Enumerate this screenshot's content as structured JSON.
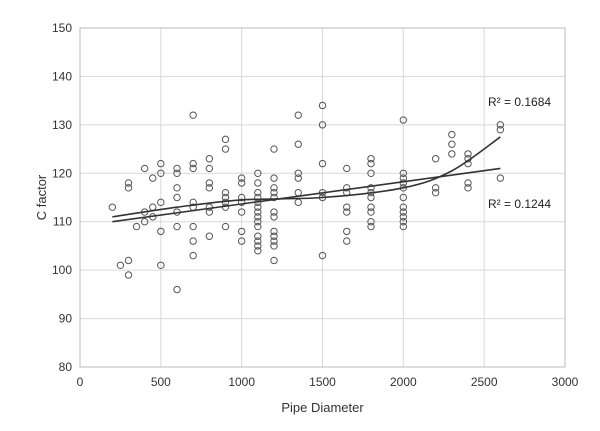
{
  "chart_data": {
    "type": "scatter",
    "xlabel": "Pipe Diameter",
    "ylabel": "C factor",
    "xlim": [
      0,
      3000
    ],
    "ylim": [
      80,
      150
    ],
    "x_ticks": [
      "0",
      "500",
      "1000",
      "1500",
      "2000",
      "2500",
      "3000"
    ],
    "y_ticks": [
      "80",
      "90",
      "100",
      "110",
      "120",
      "130",
      "140",
      "150"
    ],
    "grid": true,
    "point_color": "#555555",
    "line_color": "#333333",
    "points": [
      [
        200,
        113
      ],
      [
        250,
        101
      ],
      [
        300,
        102
      ],
      [
        300,
        99
      ],
      [
        300,
        117
      ],
      [
        300,
        118
      ],
      [
        350,
        109
      ],
      [
        400,
        112
      ],
      [
        400,
        110
      ],
      [
        400,
        121
      ],
      [
        450,
        111
      ],
      [
        450,
        113
      ],
      [
        450,
        119
      ],
      [
        500,
        122
      ],
      [
        500,
        120
      ],
      [
        500,
        114
      ],
      [
        500,
        108
      ],
      [
        500,
        101
      ],
      [
        600,
        121
      ],
      [
        600,
        120
      ],
      [
        600,
        117
      ],
      [
        600,
        115
      ],
      [
        600,
        112
      ],
      [
        600,
        109
      ],
      [
        600,
        96
      ],
      [
        700,
        132
      ],
      [
        700,
        122
      ],
      [
        700,
        121
      ],
      [
        700,
        114
      ],
      [
        700,
        113
      ],
      [
        700,
        109
      ],
      [
        700,
        106
      ],
      [
        700,
        103
      ],
      [
        800,
        123
      ],
      [
        800,
        121
      ],
      [
        800,
        118
      ],
      [
        800,
        117
      ],
      [
        800,
        113
      ],
      [
        800,
        112
      ],
      [
        800,
        107
      ],
      [
        900,
        127
      ],
      [
        900,
        125
      ],
      [
        900,
        116
      ],
      [
        900,
        115
      ],
      [
        900,
        114
      ],
      [
        900,
        113
      ],
      [
        900,
        109
      ],
      [
        1000,
        119
      ],
      [
        1000,
        118
      ],
      [
        1000,
        115
      ],
      [
        1000,
        114
      ],
      [
        1000,
        112
      ],
      [
        1000,
        108
      ],
      [
        1000,
        106
      ],
      [
        1100,
        120
      ],
      [
        1100,
        118
      ],
      [
        1100,
        116
      ],
      [
        1100,
        115
      ],
      [
        1100,
        114
      ],
      [
        1100,
        113
      ],
      [
        1100,
        112
      ],
      [
        1100,
        111
      ],
      [
        1100,
        110
      ],
      [
        1100,
        109
      ],
      [
        1100,
        107
      ],
      [
        1100,
        106
      ],
      [
        1100,
        105
      ],
      [
        1100,
        104
      ],
      [
        1200,
        125
      ],
      [
        1200,
        119
      ],
      [
        1200,
        117
      ],
      [
        1200,
        116
      ],
      [
        1200,
        115
      ],
      [
        1200,
        112
      ],
      [
        1200,
        111
      ],
      [
        1200,
        108
      ],
      [
        1200,
        107
      ],
      [
        1200,
        106
      ],
      [
        1200,
        105
      ],
      [
        1200,
        102
      ],
      [
        1350,
        132
      ],
      [
        1350,
        126
      ],
      [
        1350,
        120
      ],
      [
        1350,
        119
      ],
      [
        1350,
        116
      ],
      [
        1350,
        114
      ],
      [
        1500,
        134
      ],
      [
        1500,
        130
      ],
      [
        1500,
        122
      ],
      [
        1500,
        116
      ],
      [
        1500,
        115
      ],
      [
        1500,
        103
      ],
      [
        1650,
        121
      ],
      [
        1650,
        117
      ],
      [
        1650,
        116
      ],
      [
        1650,
        113
      ],
      [
        1650,
        112
      ],
      [
        1650,
        108
      ],
      [
        1650,
        106
      ],
      [
        1800,
        123
      ],
      [
        1800,
        122
      ],
      [
        1800,
        120
      ],
      [
        1800,
        117
      ],
      [
        1800,
        116
      ],
      [
        1800,
        115
      ],
      [
        1800,
        113
      ],
      [
        1800,
        112
      ],
      [
        1800,
        110
      ],
      [
        1800,
        109
      ],
      [
        2000,
        131
      ],
      [
        2000,
        120
      ],
      [
        2000,
        119
      ],
      [
        2000,
        118
      ],
      [
        2000,
        117
      ],
      [
        2000,
        115
      ],
      [
        2000,
        113
      ],
      [
        2000,
        112
      ],
      [
        2000,
        111
      ],
      [
        2000,
        110
      ],
      [
        2000,
        109
      ],
      [
        2200,
        123
      ],
      [
        2200,
        117
      ],
      [
        2200,
        116
      ],
      [
        2300,
        128
      ],
      [
        2300,
        126
      ],
      [
        2300,
        124
      ],
      [
        2400,
        124
      ],
      [
        2400,
        123
      ],
      [
        2400,
        122
      ],
      [
        2400,
        118
      ],
      [
        2400,
        117
      ],
      [
        2600,
        130
      ],
      [
        2600,
        129
      ],
      [
        2600,
        119
      ]
    ],
    "trendlines": [
      {
        "label": "R² = 0.1684",
        "points": [
          [
            200,
            111
          ],
          [
            600,
            113
          ],
          [
            1000,
            114.5
          ],
          [
            1500,
            115
          ],
          [
            2000,
            117
          ],
          [
            2300,
            120.5
          ],
          [
            2600,
            127.5
          ]
        ]
      },
      {
        "label": "R² = 0.1244",
        "points": [
          [
            200,
            110
          ],
          [
            2600,
            121
          ]
        ]
      }
    ]
  }
}
